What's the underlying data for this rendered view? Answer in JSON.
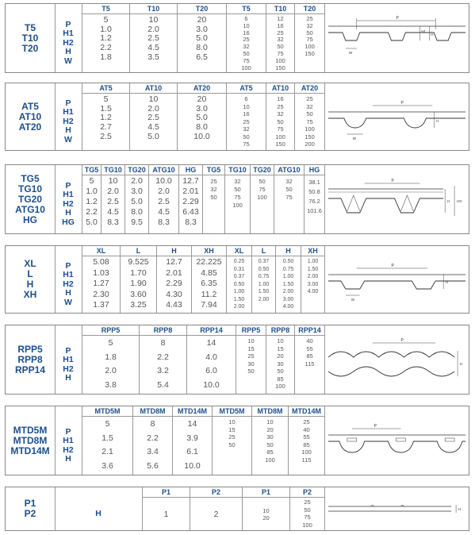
{
  "panels": [
    {
      "names": [
        "T5",
        "T10",
        "T20"
      ],
      "dims": [
        "P",
        "H1",
        "H2",
        "H",
        "W"
      ],
      "headers": [
        "T5",
        "T10",
        "T20",
        "T5",
        "T10",
        "T20"
      ],
      "columns": [
        [
          "5",
          "1.0",
          "1.2",
          "2.2",
          "1.8"
        ],
        [
          "10",
          "2.0",
          "2.5",
          "4.5",
          "3.5"
        ],
        [
          "20",
          "3.0",
          "5.0",
          "8.0",
          "6.5"
        ],
        [
          "6",
          "10",
          "16",
          "25",
          "32",
          "50",
          "75",
          "100"
        ],
        [
          "12",
          "16",
          "25",
          "32",
          "50",
          "75",
          "100",
          "150"
        ],
        [
          "25",
          "32",
          "50",
          "75",
          "100",
          "150"
        ]
      ]
    },
    {
      "names": [
        "AT5",
        "AT10",
        "AT20"
      ],
      "dims": [
        "P",
        "H1",
        "H2",
        "H",
        "W"
      ],
      "headers": [
        "AT5",
        "AT10",
        "AT20",
        "AT5",
        "AT10",
        "AT20"
      ],
      "columns": [
        [
          "5",
          "1.5",
          "1.2",
          "2.7",
          "2.5"
        ],
        [
          "10",
          "2.0",
          "2.5",
          "4.5",
          "5.0"
        ],
        [
          "20",
          "3.0",
          "5.0",
          "8.0",
          "10.0"
        ],
        [
          "6",
          "10",
          "16",
          "25",
          "32",
          "50",
          "75"
        ],
        [
          "16",
          "25",
          "32",
          "50",
          "75",
          "100",
          "150"
        ],
        [
          "25",
          "32",
          "50",
          "75",
          "100",
          "150",
          "200"
        ]
      ]
    },
    {
      "names": [
        "TG5",
        "TG10",
        "TG20",
        "ATG10",
        "HG"
      ],
      "dims": [
        "P",
        "H1",
        "H2",
        "H",
        "HG"
      ],
      "headers": [
        "TG5",
        "TG10",
        "TG20",
        "ATG10",
        "HG",
        "TG5",
        "TG10",
        "TG20",
        "ATG10",
        "HG"
      ],
      "columns": [
        [
          "5",
          "1.0",
          "1.2",
          "2.2",
          "5.0"
        ],
        [
          "10",
          "2.0",
          "2.5",
          "4.5",
          "8.3"
        ],
        [
          "2.0",
          "3.0",
          "5.0",
          "8.0",
          "9.5"
        ],
        [
          "10.0",
          "2.0",
          "2.5",
          "4.5",
          "8.3"
        ],
        [
          "12.7",
          "2.01",
          "2.29",
          "6.43",
          "8.3"
        ],
        [
          "25",
          "32",
          "50"
        ],
        [
          "32",
          "50",
          "75",
          "100"
        ],
        [
          "50",
          "75",
          "100"
        ],
        [
          "32",
          "50",
          "75"
        ],
        [
          "38.1",
          "50.8",
          "76.2",
          "101.6"
        ]
      ]
    },
    {
      "names": [
        "XL",
        "L",
        "H",
        "XH"
      ],
      "dims": [
        "P",
        "H1",
        "H2",
        "H",
        "W"
      ],
      "headers": [
        "XL",
        "L",
        "H",
        "XH",
        "XL",
        "L",
        "H",
        "XH"
      ],
      "columns": [
        [
          "5.08",
          "1.03",
          "1.27",
          "2.30",
          "1.37"
        ],
        [
          "9.525",
          "1.70",
          "1.90",
          "3.60",
          "3.25"
        ],
        [
          "12.7",
          "2.01",
          "2.29",
          "4.30",
          "4.43"
        ],
        [
          "22.225",
          "4.85",
          "6.35",
          "11.2",
          "7.94"
        ],
        [
          "0.25",
          "0.31",
          "0.37",
          "0.50",
          "1.00",
          "1.50",
          "2.00"
        ],
        [
          "0.37",
          "0.50",
          "0.75",
          "1.00",
          "1.50",
          "2.00"
        ],
        [
          "0.50",
          "0.75",
          "1.00",
          "1.50",
          "2.00",
          "3.00",
          "4.00"
        ],
        [
          "1.00",
          "1.50",
          "2.00",
          "3.00",
          "4.00"
        ]
      ]
    },
    {
      "names": [
        "RPP5",
        "RPP8",
        "RPP14"
      ],
      "dims": [
        "P",
        "H1",
        "H2",
        "H"
      ],
      "headers": [
        "RPP5",
        "RPP8",
        "RPP14",
        "RPP5",
        "RPP8",
        "RPP14"
      ],
      "columns": [
        [
          "5",
          "1.8",
          "2.0",
          "3.8"
        ],
        [
          "8",
          "2.2",
          "3.2",
          "5.4"
        ],
        [
          "14",
          "4.0",
          "6.0",
          "10.0"
        ],
        [
          "10",
          "15",
          "25",
          "30",
          "50"
        ],
        [
          "10",
          "15",
          "20",
          "30",
          "50",
          "85",
          "100"
        ],
        [
          "40",
          "55",
          "85",
          "115"
        ]
      ]
    },
    {
      "names": [
        "MTD5M",
        "MTD8M",
        "MTD14M"
      ],
      "dims": [
        "P",
        "H1",
        "H2",
        "H"
      ],
      "headers": [
        "MTD5M",
        "MTD8M",
        "MTD14M",
        "MTD5M",
        "MTD8M",
        "MTD14M"
      ],
      "columns": [
        [
          "5",
          "1.5",
          "2.1",
          "3.6"
        ],
        [
          "8",
          "2.2",
          "3.4",
          "5.6"
        ],
        [
          "14",
          "3.9",
          "6.1",
          "10.0"
        ],
        [
          "10",
          "15",
          "25",
          "50"
        ],
        [
          "10",
          "20",
          "30",
          "50",
          "85",
          "100"
        ],
        [
          "25",
          "40",
          "55",
          "85",
          "100",
          "115"
        ]
      ]
    },
    {
      "names": [
        "P1",
        "P2"
      ],
      "dims": [
        "H"
      ],
      "headers": [
        "P1",
        "P2",
        "P1",
        "P2"
      ],
      "columns": [
        [
          "1"
        ],
        [
          "2"
        ],
        [
          "10",
          "20"
        ],
        [
          "25",
          "50",
          "75",
          "100"
        ]
      ]
    }
  ]
}
